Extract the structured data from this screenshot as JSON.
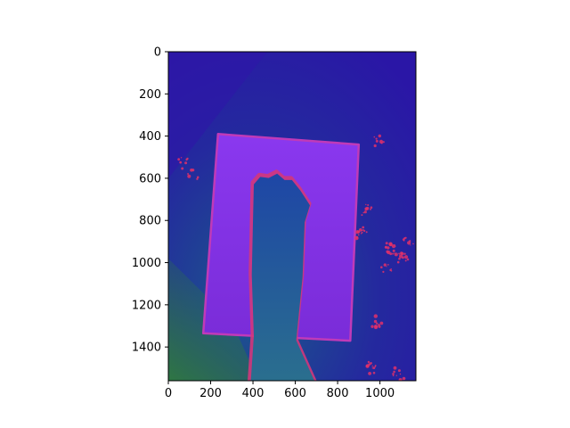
{
  "chart_data": {
    "type": "heatmap",
    "title": "",
    "xlabel": "",
    "ylabel": "",
    "x_extent": [
      0,
      1170
    ],
    "y_extent": [
      0,
      1560
    ],
    "y_inverted": true,
    "x_ticks": [
      0,
      200,
      400,
      600,
      800,
      1000
    ],
    "y_ticks": [
      0,
      200,
      400,
      600,
      800,
      1000,
      1200,
      1400
    ],
    "grid": false,
    "legend": "none",
    "colors": {
      "background": "#2a1ea8",
      "board": "#7b2fe6",
      "board_edge": "#c03ab8",
      "foot": "#1f4fa0",
      "foot_highlight": "#d2387c",
      "ground_green": "#2a6a4a",
      "speckle": "#e0306a"
    },
    "regions": [
      {
        "name": "board",
        "polygon": [
          [
            235,
            390
          ],
          [
            900,
            440
          ],
          [
            860,
            1370
          ],
          [
            165,
            1335
          ]
        ]
      },
      {
        "name": "foot",
        "polygon": [
          [
            385,
            1560
          ],
          [
            400,
            1340
          ],
          [
            390,
            1050
          ],
          [
            395,
            820
          ],
          [
            400,
            620
          ],
          [
            430,
            585
          ],
          [
            470,
            590
          ],
          [
            510,
            570
          ],
          [
            545,
            600
          ],
          [
            580,
            600
          ],
          [
            620,
            650
          ],
          [
            665,
            720
          ],
          [
            640,
            800
          ],
          [
            630,
            1060
          ],
          [
            600,
            1360
          ],
          [
            690,
            1560
          ]
        ]
      }
    ]
  }
}
